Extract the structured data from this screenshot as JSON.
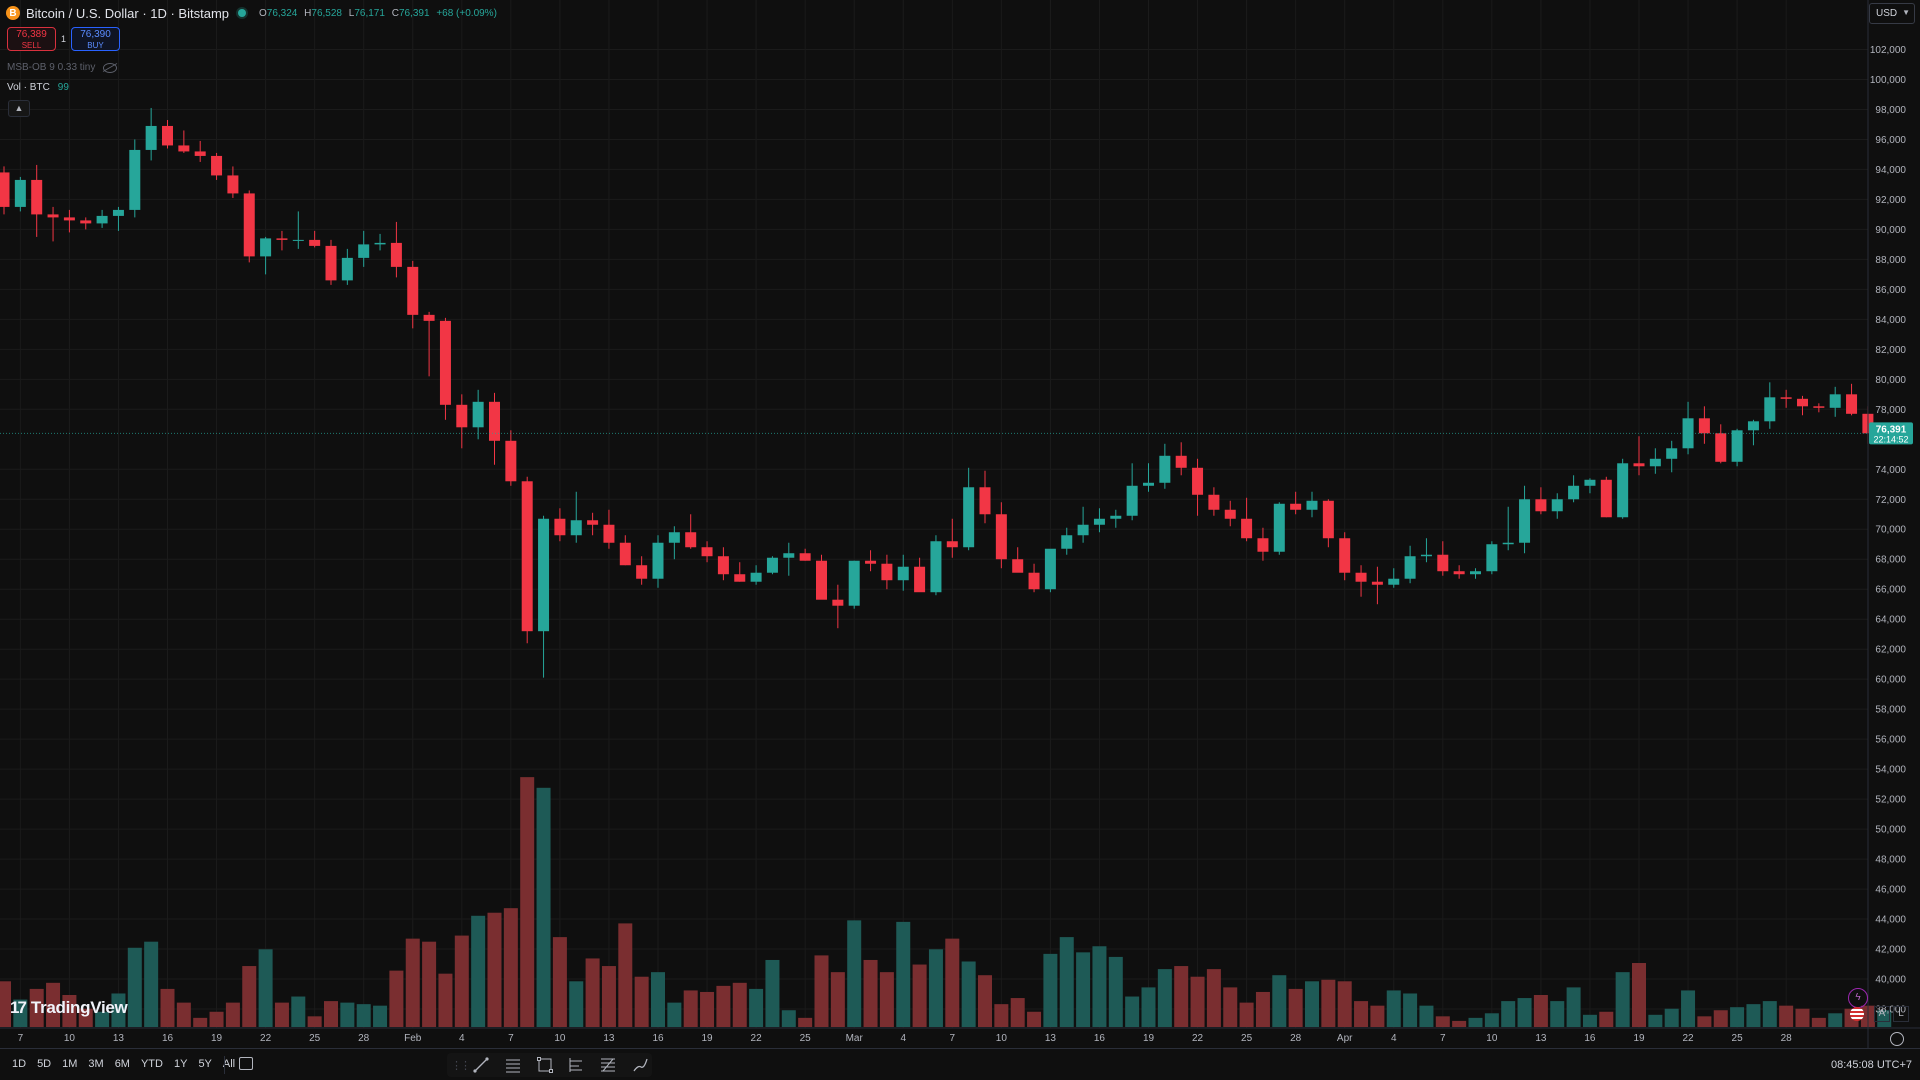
{
  "header": {
    "symbol_icon": "B",
    "title": "Bitcoin / U.S. Dollar · 1D · Bitstamp",
    "market_status_icon": "market-open-dot-icon",
    "open_label": "O",
    "open": "76,324",
    "high_label": "H",
    "high": "76,528",
    "low_label": "L",
    "low": "76,171",
    "close_label": "C",
    "close": "76,391",
    "change": "+68 (+0.09%)"
  },
  "trade": {
    "sell_price": "76,389",
    "sell_label": "SELL",
    "spread": "1",
    "buy_price": "76,390",
    "buy_label": "BUY"
  },
  "indicators": {
    "msb_label": "MSB-OB 9 0.33 tiny",
    "msb_visibility_icon": "eye-off-icon",
    "vol_label": "Vol · BTC",
    "vol_value": "99",
    "collapse_icon": "chevron-up-icon"
  },
  "currency": {
    "label": "USD",
    "icon": "chevron-down-icon"
  },
  "price_scale": {
    "labels": [
      "102,000",
      "100,000",
      "98,000",
      "96,000",
      "94,000",
      "92,000",
      "90,000",
      "88,000",
      "86,000",
      "84,000",
      "82,000",
      "80,000",
      "78,000",
      "74,000",
      "72,000",
      "70,000",
      "68,000",
      "66,000",
      "64,000",
      "62,000",
      "60,000",
      "58,000",
      "56,000",
      "54,000",
      "52,000",
      "50,000",
      "48,000",
      "46,000",
      "44,000",
      "42,000",
      "40,000",
      "38,000"
    ],
    "last_price": "76,391",
    "countdown": "22:14:52"
  },
  "time_axis": {
    "labels": [
      "7",
      "10",
      "13",
      "16",
      "19",
      "22",
      "25",
      "28",
      "Feb",
      "4",
      "7",
      "10",
      "13",
      "16",
      "19",
      "22",
      "25",
      "Mar",
      "4",
      "7",
      "10",
      "13",
      "16",
      "19",
      "22",
      "25",
      "28",
      "Apr",
      "4",
      "7",
      "10",
      "13",
      "16",
      "19",
      "22",
      "25",
      "28"
    ]
  },
  "colors": {
    "up": "#26a69a",
    "down": "#f23645",
    "up_volume": "#1e5a56",
    "down_volume": "#7a2e30",
    "background": "#0f0f0f"
  },
  "chart_data": {
    "type": "candlestick",
    "symbol": "Bitcoin / U.S. Dollar",
    "interval": "1D",
    "exchange": "Bitstamp",
    "y_range": [
      36800,
      103300
    ],
    "ohlcv": [
      [
        93800,
        94200,
        91000,
        91500,
        39000
      ],
      [
        91500,
        93500,
        91200,
        93300,
        37800
      ],
      [
        93300,
        94300,
        89500,
        91000,
        38500
      ],
      [
        91000,
        91500,
        89200,
        90800,
        38900
      ],
      [
        90800,
        91300,
        89800,
        90600,
        38100
      ],
      [
        90600,
        90800,
        90000,
        90400,
        37200
      ],
      [
        90400,
        91300,
        90100,
        90900,
        37000
      ],
      [
        90900,
        91500,
        89900,
        91300,
        38200
      ],
      [
        91300,
        96000,
        90800,
        95300,
        41200
      ],
      [
        95300,
        98100,
        94600,
        96900,
        41600
      ],
      [
        96900,
        97300,
        95400,
        95600,
        38500
      ],
      [
        95600,
        96600,
        95100,
        95200,
        37600
      ],
      [
        95200,
        95900,
        94500,
        94900,
        36600
      ],
      [
        94900,
        95100,
        93300,
        93600,
        37000
      ],
      [
        93600,
        94200,
        92100,
        92400,
        37600
      ],
      [
        92400,
        92600,
        87800,
        88200,
        40000
      ],
      [
        88200,
        89500,
        87000,
        89400,
        41100
      ],
      [
        89400,
        89900,
        88600,
        89300,
        37600
      ],
      [
        89300,
        91200,
        88700,
        89300,
        38000
      ],
      [
        89300,
        89900,
        88800,
        88900,
        36700
      ],
      [
        88900,
        89300,
        86300,
        86600,
        37700
      ],
      [
        86600,
        88700,
        86300,
        88100,
        37600
      ],
      [
        88100,
        89900,
        87500,
        89000,
        37500
      ],
      [
        89000,
        89700,
        88600,
        89100,
        37400
      ],
      [
        89100,
        90500,
        86800,
        87500,
        39700
      ],
      [
        87500,
        87900,
        83400,
        84300,
        41800
      ],
      [
        84300,
        84500,
        80200,
        83900,
        41600
      ],
      [
        83900,
        84100,
        77300,
        78300,
        39500
      ],
      [
        78300,
        79000,
        75400,
        76800,
        42000
      ],
      [
        76800,
        79300,
        76000,
        78500,
        43300
      ],
      [
        78500,
        79100,
        74300,
        75900,
        43500
      ],
      [
        75900,
        76600,
        72900,
        73200,
        43800
      ],
      [
        73200,
        73500,
        62400,
        63200,
        52400
      ],
      [
        63200,
        70900,
        60100,
        70700,
        51700
      ],
      [
        70700,
        71400,
        69200,
        69600,
        41900
      ],
      [
        69600,
        72500,
        69100,
        70600,
        39000
      ],
      [
        70600,
        71100,
        69600,
        70300,
        40500
      ],
      [
        70300,
        71300,
        68700,
        69100,
        40000
      ],
      [
        69100,
        69600,
        67600,
        67600,
        42800
      ],
      [
        67600,
        68200,
        66300,
        66700,
        39300
      ],
      [
        66700,
        69600,
        66100,
        69100,
        39600
      ],
      [
        69100,
        70200,
        68000,
        69800,
        37600
      ],
      [
        69800,
        71000,
        68700,
        68800,
        38400
      ],
      [
        68800,
        69200,
        67800,
        68200,
        38300
      ],
      [
        68200,
        68800,
        66600,
        67000,
        38700
      ],
      [
        67000,
        67800,
        66500,
        66500,
        38900
      ],
      [
        66500,
        67600,
        66300,
        67100,
        38500
      ],
      [
        67100,
        68200,
        67000,
        68100,
        40400
      ],
      [
        68100,
        69100,
        66900,
        68400,
        37100
      ],
      [
        68400,
        68700,
        67900,
        67900,
        36600
      ],
      [
        67900,
        68300,
        66700,
        65300,
        40700
      ],
      [
        65300,
        66300,
        63400,
        64900,
        39600
      ],
      [
        64900,
        67900,
        64700,
        67900,
        43000
      ],
      [
        67900,
        68600,
        67200,
        67700,
        40400
      ],
      [
        67700,
        68300,
        66000,
        66600,
        39600
      ],
      [
        66600,
        68300,
        65900,
        67500,
        42900
      ],
      [
        67500,
        68100,
        66100,
        65800,
        40100
      ],
      [
        65800,
        69600,
        65600,
        69200,
        41100
      ],
      [
        69200,
        70700,
        68100,
        68800,
        41800
      ],
      [
        68800,
        74100,
        68600,
        72800,
        40300
      ],
      [
        72800,
        73900,
        70400,
        71000,
        39400
      ],
      [
        71000,
        71800,
        67400,
        68000,
        37500
      ],
      [
        68000,
        68800,
        67200,
        67100,
        37900
      ],
      [
        67100,
        67700,
        65800,
        66000,
        37000
      ],
      [
        66000,
        68600,
        65800,
        68700,
        40800
      ],
      [
        68700,
        70100,
        68300,
        69600,
        41900
      ],
      [
        69600,
        71500,
        69100,
        70300,
        40900
      ],
      [
        70300,
        71400,
        69800,
        70700,
        41300
      ],
      [
        70700,
        71300,
        70100,
        70900,
        40600
      ],
      [
        70900,
        74400,
        70600,
        72900,
        38000
      ],
      [
        72900,
        74400,
        72500,
        73100,
        38600
      ],
      [
        73100,
        75700,
        72700,
        74900,
        39800
      ],
      [
        74900,
        75800,
        73600,
        74100,
        40000
      ],
      [
        74100,
        74700,
        70900,
        72300,
        39300
      ],
      [
        72300,
        72800,
        70900,
        71300,
        39800
      ],
      [
        71300,
        71900,
        70200,
        70700,
        38600
      ],
      [
        70700,
        72100,
        69200,
        69400,
        37600
      ],
      [
        69400,
        70100,
        67900,
        68500,
        38300
      ],
      [
        68500,
        71800,
        68300,
        71700,
        39400
      ],
      [
        71700,
        72500,
        71000,
        71300,
        38500
      ],
      [
        71300,
        72500,
        70800,
        71900,
        39000
      ],
      [
        71900,
        72000,
        68800,
        69400,
        39100
      ],
      [
        69400,
        69800,
        66600,
        67100,
        39000
      ],
      [
        67100,
        67600,
        65500,
        66500,
        37700
      ],
      [
        66500,
        67500,
        65000,
        66300,
        37400
      ],
      [
        66300,
        67400,
        66100,
        66700,
        38400
      ],
      [
        66700,
        68900,
        66400,
        68200,
        38200
      ],
      [
        68200,
        69400,
        67800,
        68300,
        37400
      ],
      [
        68300,
        69200,
        66900,
        67200,
        36700
      ],
      [
        67200,
        67600,
        66700,
        67000,
        36400
      ],
      [
        67000,
        67400,
        66700,
        67200,
        36600
      ],
      [
        67200,
        69200,
        67000,
        69000,
        36900
      ],
      [
        69000,
        71500,
        68600,
        69100,
        37700
      ],
      [
        69100,
        72900,
        68400,
        72000,
        37900
      ],
      [
        72000,
        72800,
        71000,
        71200,
        38100
      ],
      [
        71200,
        72400,
        70700,
        72000,
        37700
      ],
      [
        72000,
        73600,
        71800,
        72900,
        38600
      ],
      [
        72900,
        73400,
        72400,
        73300,
        36800
      ],
      [
        73300,
        73500,
        70800,
        70800,
        37000
      ],
      [
        70800,
        74700,
        70700,
        74400,
        39600
      ],
      [
        74400,
        76200,
        73600,
        74200,
        40200
      ],
      [
        74200,
        75400,
        73700,
        74700,
        36800
      ],
      [
        74700,
        75900,
        73800,
        75400,
        37200
      ],
      [
        75400,
        78500,
        75000,
        77400,
        38400
      ],
      [
        77400,
        78200,
        75700,
        76400,
        36700
      ],
      [
        76400,
        77000,
        74400,
        74500,
        37100
      ],
      [
        74500,
        76700,
        74200,
        76600,
        37300
      ],
      [
        76600,
        77300,
        75600,
        77200,
        37500
      ],
      [
        77200,
        79800,
        76700,
        78800,
        37700
      ],
      [
        78800,
        79300,
        78100,
        78700,
        37400
      ],
      [
        78700,
        78900,
        77600,
        78200,
        37200
      ],
      [
        78200,
        78400,
        77800,
        78100,
        36600
      ],
      [
        78100,
        79500,
        77500,
        79000,
        36900
      ],
      [
        79000,
        79700,
        77600,
        77700,
        37200
      ],
      [
        77700,
        78200,
        75700,
        76400,
        37400
      ],
      [
        76324,
        76528,
        76171,
        76391,
        37100
      ]
    ]
  }
}
